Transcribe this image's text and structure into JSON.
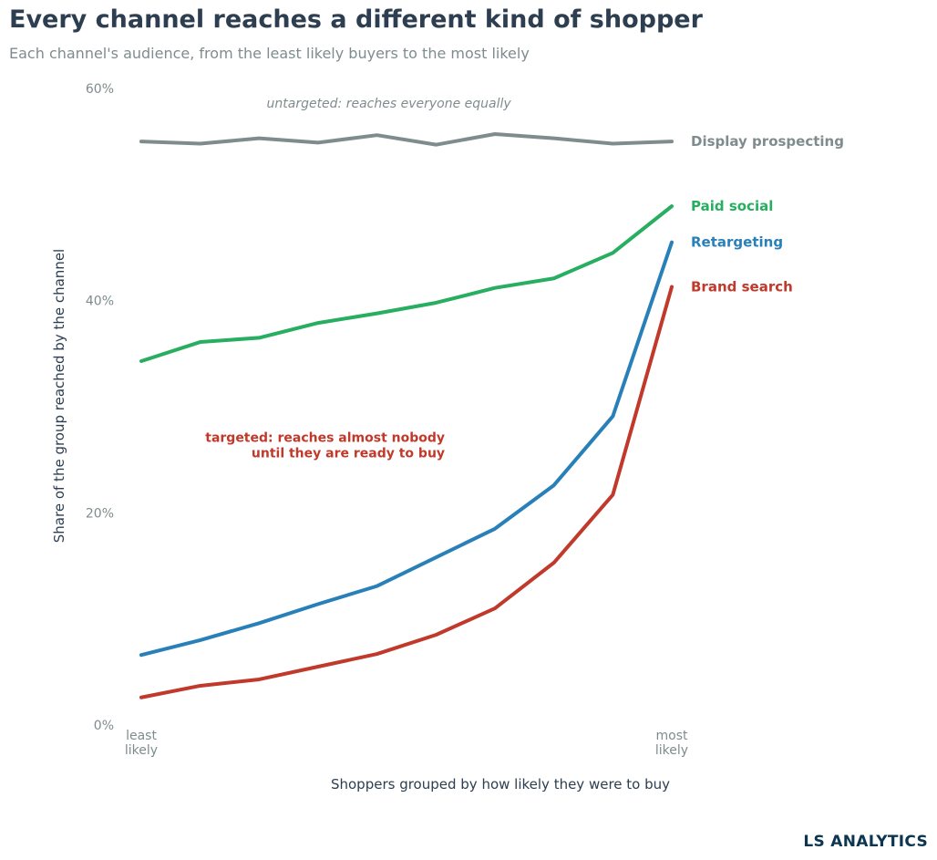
{
  "title": "Every channel reaches a different kind of shopper",
  "subtitle": "Each channel's audience, from the least likely buyers to the most likely",
  "brand": "LS ANALYTICS",
  "chart_data": {
    "type": "line",
    "xlabel": "Shoppers grouped by how likely they were to buy",
    "ylabel": "Share of the group reached by the channel",
    "x_tick_labels": [
      {
        "lines": [
          "least",
          "likely"
        ]
      },
      {
        "lines": [
          "most",
          "likely"
        ]
      }
    ],
    "x": [
      1,
      2,
      3,
      4,
      5,
      6,
      7,
      8,
      9,
      10
    ],
    "ylim": [
      0,
      60
    ],
    "yticks": [
      {
        "value": 0,
        "label": "0%"
      },
      {
        "value": 20,
        "label": "20%"
      },
      {
        "value": 40,
        "label": "40%"
      },
      {
        "value": 60,
        "label": "60%"
      }
    ],
    "grid": false,
    "series": [
      {
        "name": "Display prospecting",
        "color": "#7f8c8d",
        "values": [
          55.0,
          54.8,
          55.3,
          54.9,
          55.6,
          54.7,
          55.7,
          55.3,
          54.8,
          55.0
        ]
      },
      {
        "name": "Paid social",
        "color": "#27ae60",
        "values": [
          34.3,
          36.1,
          36.5,
          37.9,
          38.8,
          39.8,
          41.2,
          42.1,
          44.5,
          48.9
        ]
      },
      {
        "name": "Retargeting",
        "color": "#2980b9",
        "values": [
          6.6,
          8.0,
          9.6,
          11.4,
          13.1,
          15.8,
          18.5,
          22.6,
          29.1,
          45.5
        ]
      },
      {
        "name": "Brand search",
        "color": "#c0392b",
        "values": [
          2.6,
          3.7,
          4.3,
          5.5,
          6.7,
          8.5,
          11.0,
          15.3,
          21.7,
          41.3
        ]
      }
    ],
    "annotations": [
      {
        "text_lines": [
          "untargeted: reaches everyone equally"
        ],
        "x": 5.2,
        "y": 58.2,
        "anchor": "middle",
        "style": "italic",
        "color": "#7f8c8d"
      },
      {
        "text_lines": [
          "targeted: reaches almost nobody",
          "until they are ready to buy"
        ],
        "x": 6.15,
        "y": 26.7,
        "anchor": "end",
        "style": "bold",
        "color": "#c0392b"
      }
    ]
  }
}
